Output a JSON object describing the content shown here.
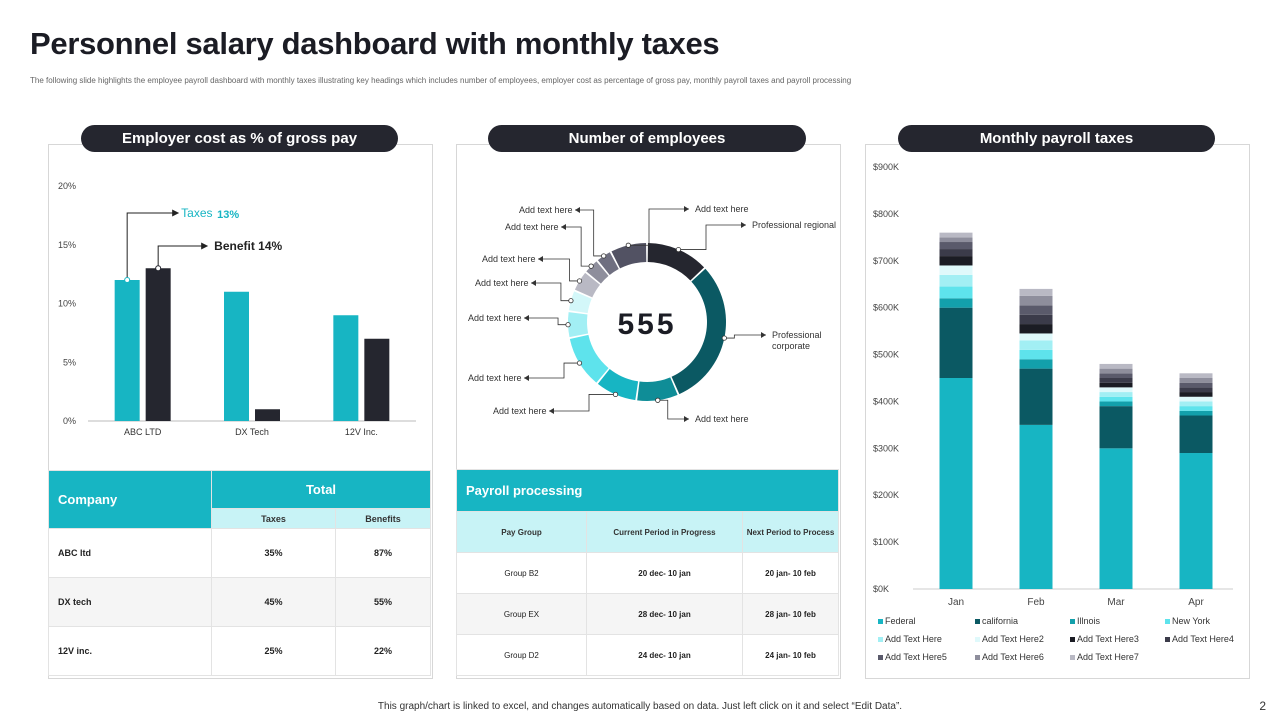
{
  "header": {
    "title": "Personnel salary dashboard with monthly taxes",
    "subtitle": "The  following slide highlights  the employee payroll dashboard  with monthly taxes illustrating key headings which includes number of employees, employer cost as percentage of gross pay, monthly payroll taxes and payroll processing"
  },
  "panels": {
    "left_title": "Employer cost as % of gross pay",
    "middle_title": "Number of employees",
    "right_title": "Monthly payroll taxes"
  },
  "colors": {
    "teal": "#17b5c3",
    "dark": "#25262f",
    "deep_teal": "#0b5963",
    "light_teal": "#c8f3f6"
  },
  "chart_data": [
    {
      "type": "bar",
      "title": "Employer cost as % of gross pay",
      "categories": [
        "ABC LTD",
        "DX Tech",
        "12V Inc."
      ],
      "series": [
        {
          "name": "Taxes",
          "values": [
            12,
            11,
            9
          ],
          "color": "#17b5c3"
        },
        {
          "name": "Benefit",
          "values": [
            13,
            1,
            7
          ],
          "color": "#25262f"
        }
      ],
      "ylim": [
        0,
        20
      ],
      "yticks": [
        "0%",
        "5%",
        "10%",
        "15%",
        "20%"
      ],
      "annotations": {
        "taxes_label": "Taxes",
        "taxes_value": "13%",
        "benefit_label": "Benefit 14%"
      }
    },
    {
      "type": "pie",
      "title": "Number of employees",
      "center_value": "555",
      "segments": [
        {
          "label": "Professional regional",
          "value": 12,
          "color": "#25262f"
        },
        {
          "label": "Professional corporate",
          "value": 28,
          "color": "#0b5963"
        },
        {
          "label": "Add text here",
          "value": 8,
          "color": "#0f8d97"
        },
        {
          "label": "Add text here",
          "value": 8,
          "color": "#17b5c3"
        },
        {
          "label": "Add text here",
          "value": 10,
          "color": "#5ee3ec"
        },
        {
          "label": "Add text here",
          "value": 5,
          "color": "#a2eff4"
        },
        {
          "label": "Add text here",
          "value": 4,
          "color": "#d3f7f9"
        },
        {
          "label": "Add text here",
          "value": 4,
          "color": "#b9b9c4"
        },
        {
          "label": "Add text here",
          "value": 3,
          "color": "#8e8e9c"
        },
        {
          "label": "Add text here",
          "value": 3,
          "color": "#6f6f80"
        },
        {
          "label": "Add text here",
          "value": 7,
          "color": "#525263"
        }
      ]
    },
    {
      "type": "bar",
      "stacked": true,
      "title": "Monthly payroll taxes",
      "categories": [
        "Jan",
        "Feb",
        "Mar",
        "Apr"
      ],
      "ylim": [
        0,
        900
      ],
      "yticks": [
        "$0K",
        "$100K",
        "$200K",
        "$300K",
        "$400K",
        "$500K",
        "$600K",
        "$700K",
        "$800K",
        "$900K"
      ],
      "series": [
        {
          "name": "Federal",
          "values": [
            450,
            350,
            300,
            290
          ],
          "color": "#17b5c3"
        },
        {
          "name": "california",
          "values": [
            150,
            120,
            90,
            80
          ],
          "color": "#0b5963"
        },
        {
          "name": "Illnois",
          "values": [
            20,
            20,
            10,
            10
          ],
          "color": "#13a0ab"
        },
        {
          "name": "New York",
          "values": [
            25,
            20,
            10,
            10
          ],
          "color": "#5ee3ec"
        },
        {
          "name": "Add Text Here",
          "values": [
            25,
            20,
            10,
            10
          ],
          "color": "#a2eff4"
        },
        {
          "name": "Add Text Here2",
          "values": [
            20,
            15,
            10,
            10
          ],
          "color": "#dff9fb"
        },
        {
          "name": "Add Text Here3",
          "values": [
            20,
            20,
            10,
            10
          ],
          "color": "#1b1c24"
        },
        {
          "name": "Add Text Here4",
          "values": [
            15,
            20,
            10,
            10
          ],
          "color": "#3b3b4a"
        },
        {
          "name": "Add Text Here5",
          "values": [
            15,
            20,
            10,
            10
          ],
          "color": "#5a5a6b"
        },
        {
          "name": "Add Text Here6",
          "values": [
            10,
            20,
            10,
            10
          ],
          "color": "#8e8e9c"
        },
        {
          "name": "Add Text Here7",
          "values": [
            10,
            15,
            10,
            10
          ],
          "color": "#b9b9c4"
        }
      ]
    }
  ],
  "company_table": {
    "col_company": "Company",
    "col_total": "Total",
    "col_taxes": "Taxes",
    "col_benefits": "Benefits",
    "rows": [
      {
        "name": "ABC ltd",
        "taxes": "35%",
        "benefits": "87%"
      },
      {
        "name": "DX tech",
        "taxes": "45%",
        "benefits": "55%"
      },
      {
        "name": "12V inc.",
        "taxes": "25%",
        "benefits": "22%"
      }
    ]
  },
  "payroll_table": {
    "title": "Payroll processing",
    "col_group": "Pay Group",
    "col_current": "Current Period in Progress",
    "col_next": "Next Period to Process",
    "rows": [
      {
        "group": "Group B2",
        "current": "20 dec- 10 jan",
        "next": "20 jan- 10 feb"
      },
      {
        "group": "Group EX",
        "current": "28 dec- 10 jan",
        "next": "28 jan- 10 feb"
      },
      {
        "group": "Group D2",
        "current": "24 dec- 10 jan",
        "next": "24 jan- 10 feb"
      }
    ]
  },
  "footer": {
    "note": "This graph/chart is linked to excel, and changes automatically based on data. Just left click on it and select “Edit Data”.",
    "page": "2"
  }
}
